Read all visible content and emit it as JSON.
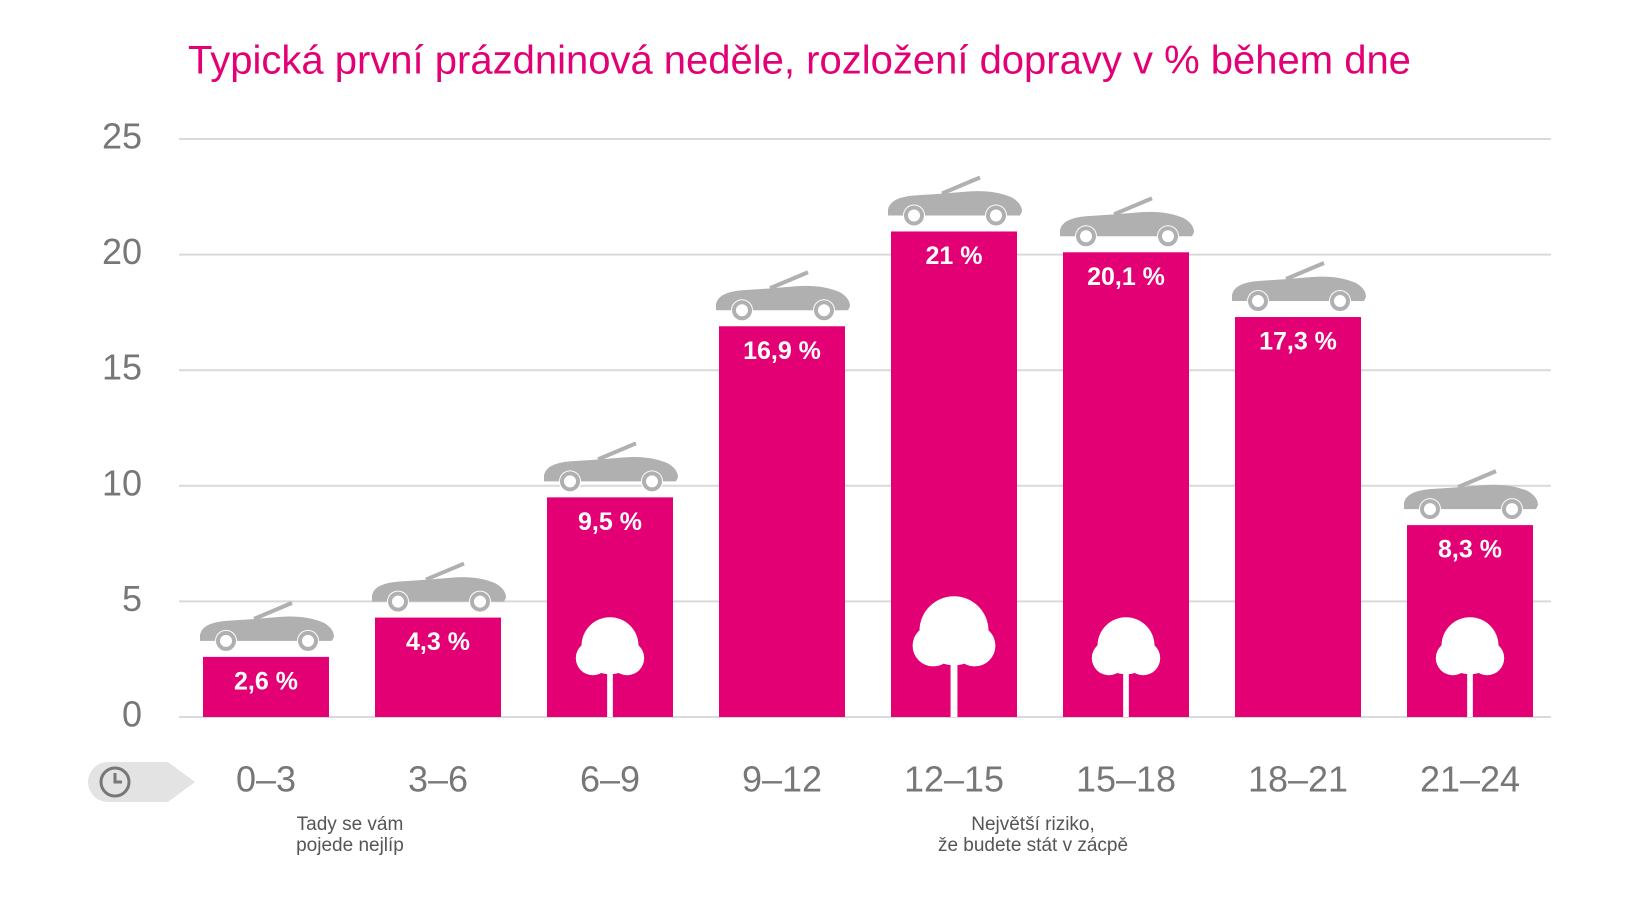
{
  "chart_data": {
    "type": "bar",
    "title": "Typická první prázdninová neděle, rozložení dopravy v % během dne",
    "categories": [
      "0–3",
      "3–6",
      "6–9",
      "9–12",
      "12–15",
      "15–18",
      "18–21",
      "21–24"
    ],
    "values": [
      2.6,
      4.3,
      9.5,
      16.9,
      21,
      20.1,
      17.3,
      8.3
    ],
    "value_labels": [
      "2,6 %",
      "4,3 %",
      "9,5 %",
      "16,9 %",
      "21 %",
      "20,1 %",
      "17,3 %",
      "8,3 %"
    ],
    "color": "#e20074",
    "ylim": [
      0,
      25
    ],
    "yticks": [
      0,
      5,
      10,
      15,
      20,
      25
    ],
    "grid": true,
    "annotations": [
      {
        "lines": [
          "Tady se vám",
          "pojede nejlíp"
        ]
      },
      {
        "lines": [
          "Největší riziko,",
          "že budete stát v zácpě"
        ]
      }
    ]
  }
}
